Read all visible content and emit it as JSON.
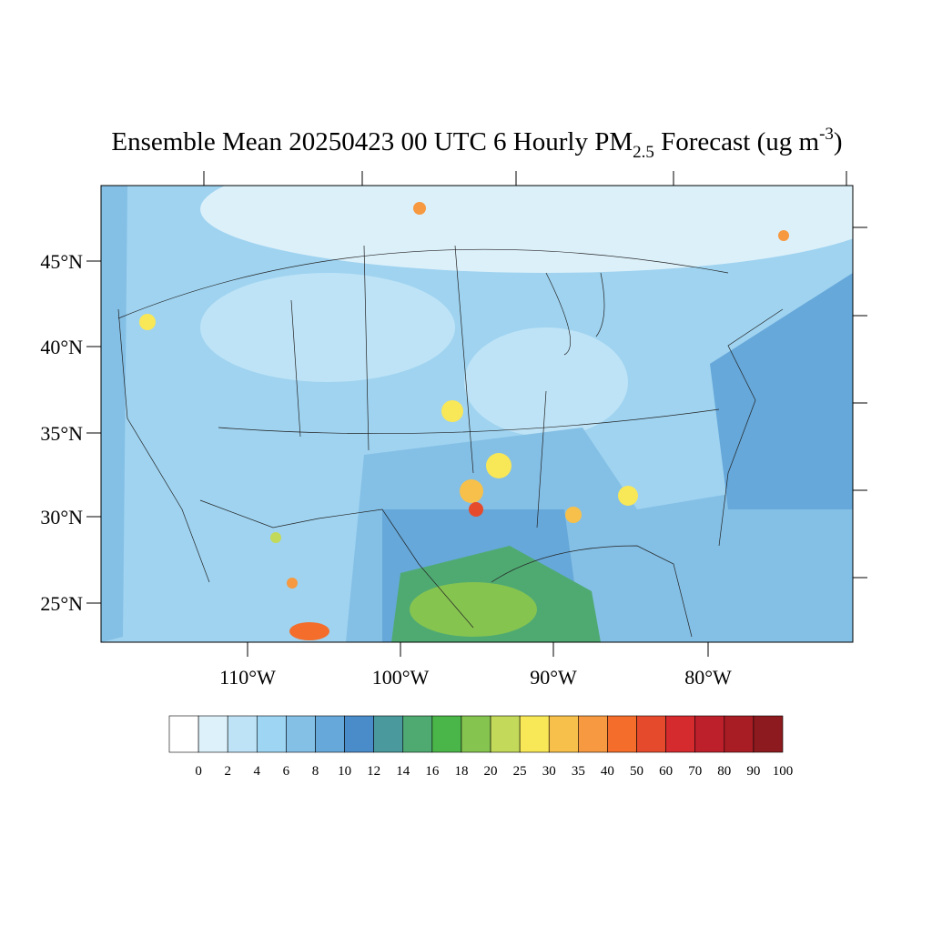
{
  "title": {
    "main": "Ensemble Mean 20250423 00 UTC 6 Hourly PM",
    "sub": "2.5",
    "middle": " Forecast (ug m",
    "sup": "-3",
    "end": ")"
  },
  "map": {
    "lat_labels": [
      "45°N",
      "40°N",
      "35°N",
      "30°N",
      "25°N"
    ],
    "lon_labels": [
      "110°W",
      "100°W",
      "90°W",
      "80°W"
    ]
  },
  "colorbar": {
    "colors": [
      "#ffffff",
      "#ddf1fb",
      "#bee3f6",
      "#9dd5f2",
      "#84bfe5",
      "#66a8da",
      "#4a8cca",
      "#4a9a9d",
      "#4faa72",
      "#4ab548",
      "#86c450",
      "#c3d95a",
      "#f8e757",
      "#f7c04a",
      "#f69940",
      "#f46d2a",
      "#e64a2c",
      "#d52a2e",
      "#bd1f2b",
      "#a81c24",
      "#8d1a1e"
    ],
    "labels": [
      "0",
      "2",
      "4",
      "6",
      "8",
      "10",
      "12",
      "14",
      "16",
      "18",
      "20",
      "25",
      "30",
      "35",
      "40",
      "50",
      "60",
      "70",
      "80",
      "90",
      "100"
    ]
  }
}
